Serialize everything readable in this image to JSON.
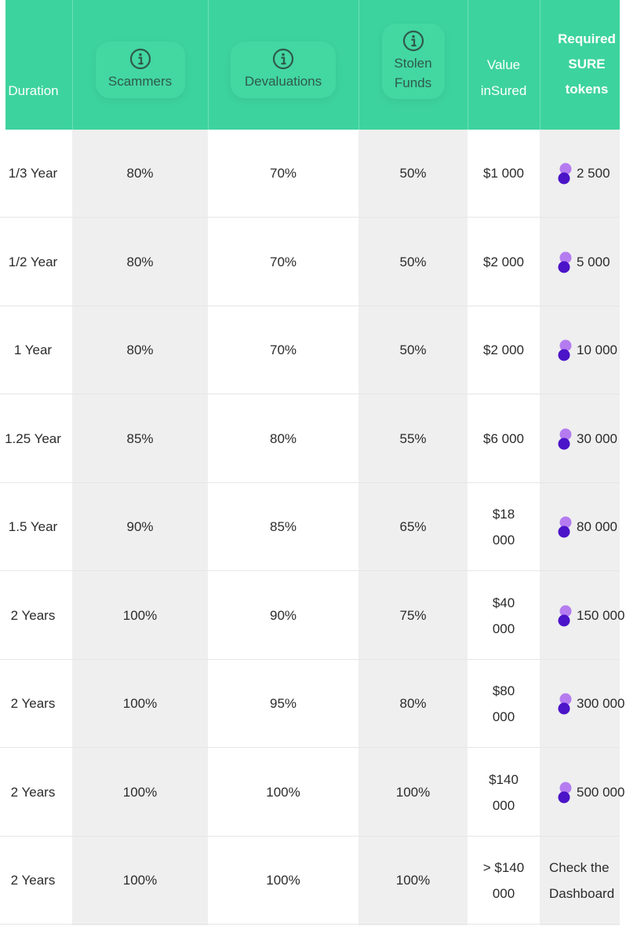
{
  "header": {
    "duration": "Duration",
    "scammers": "Scammers",
    "devaluations": "Devaluations",
    "stolen_funds_line1": "Stolen",
    "stolen_funds_line2": "Funds",
    "value_line1": "Value",
    "value_line2": "inSured",
    "required_line1": "Required",
    "required_line2": "SURE",
    "required_line3": "tokens",
    "info_icon": "info-icon"
  },
  "rows": [
    {
      "duration": "1/3 Year",
      "scammers": "80%",
      "devaluations": "70%",
      "stolen": "50%",
      "value1": "$1 000",
      "value2": "",
      "tokens": "2 500"
    },
    {
      "duration": "1/2 Year",
      "scammers": "80%",
      "devaluations": "70%",
      "stolen": "50%",
      "value1": "$2 000",
      "value2": "",
      "tokens": "5 000"
    },
    {
      "duration": "1 Year",
      "scammers": "80%",
      "devaluations": "70%",
      "stolen": "50%",
      "value1": "$2 000",
      "value2": "",
      "tokens": "10 000"
    },
    {
      "duration": "1.25 Year",
      "scammers": "85%",
      "devaluations": "80%",
      "stolen": "55%",
      "value1": "$6 000",
      "value2": "",
      "tokens": "30 000"
    },
    {
      "duration": "1.5 Year",
      "scammers": "90%",
      "devaluations": "85%",
      "stolen": "65%",
      "value1": "$18",
      "value2": "000",
      "tokens": "80 000"
    },
    {
      "duration": "2 Years",
      "scammers": "100%",
      "devaluations": "90%",
      "stolen": "75%",
      "value1": "$40",
      "value2": "000",
      "tokens": "150 000"
    },
    {
      "duration": "2 Years",
      "scammers": "100%",
      "devaluations": "95%",
      "stolen": "80%",
      "value1": "$80",
      "value2": "000",
      "tokens": "300 000"
    },
    {
      "duration": "2 Years",
      "scammers": "100%",
      "devaluations": "100%",
      "stolen": "100%",
      "value1": "$140",
      "value2": "000",
      "tokens": "500 000"
    },
    {
      "duration": "2 Years",
      "scammers": "100%",
      "devaluations": "100%",
      "stolen": "100%",
      "value1": "> $140",
      "value2": "000",
      "check1": "Check the",
      "check2": "Dashboard"
    }
  ],
  "colors": {
    "header_green": "#3dd39e",
    "shade_gray": "#efefef",
    "token_purple_light": "#b57cf0",
    "token_purple_dark": "#4b14c8"
  },
  "token_icon": "sure-token-icon"
}
